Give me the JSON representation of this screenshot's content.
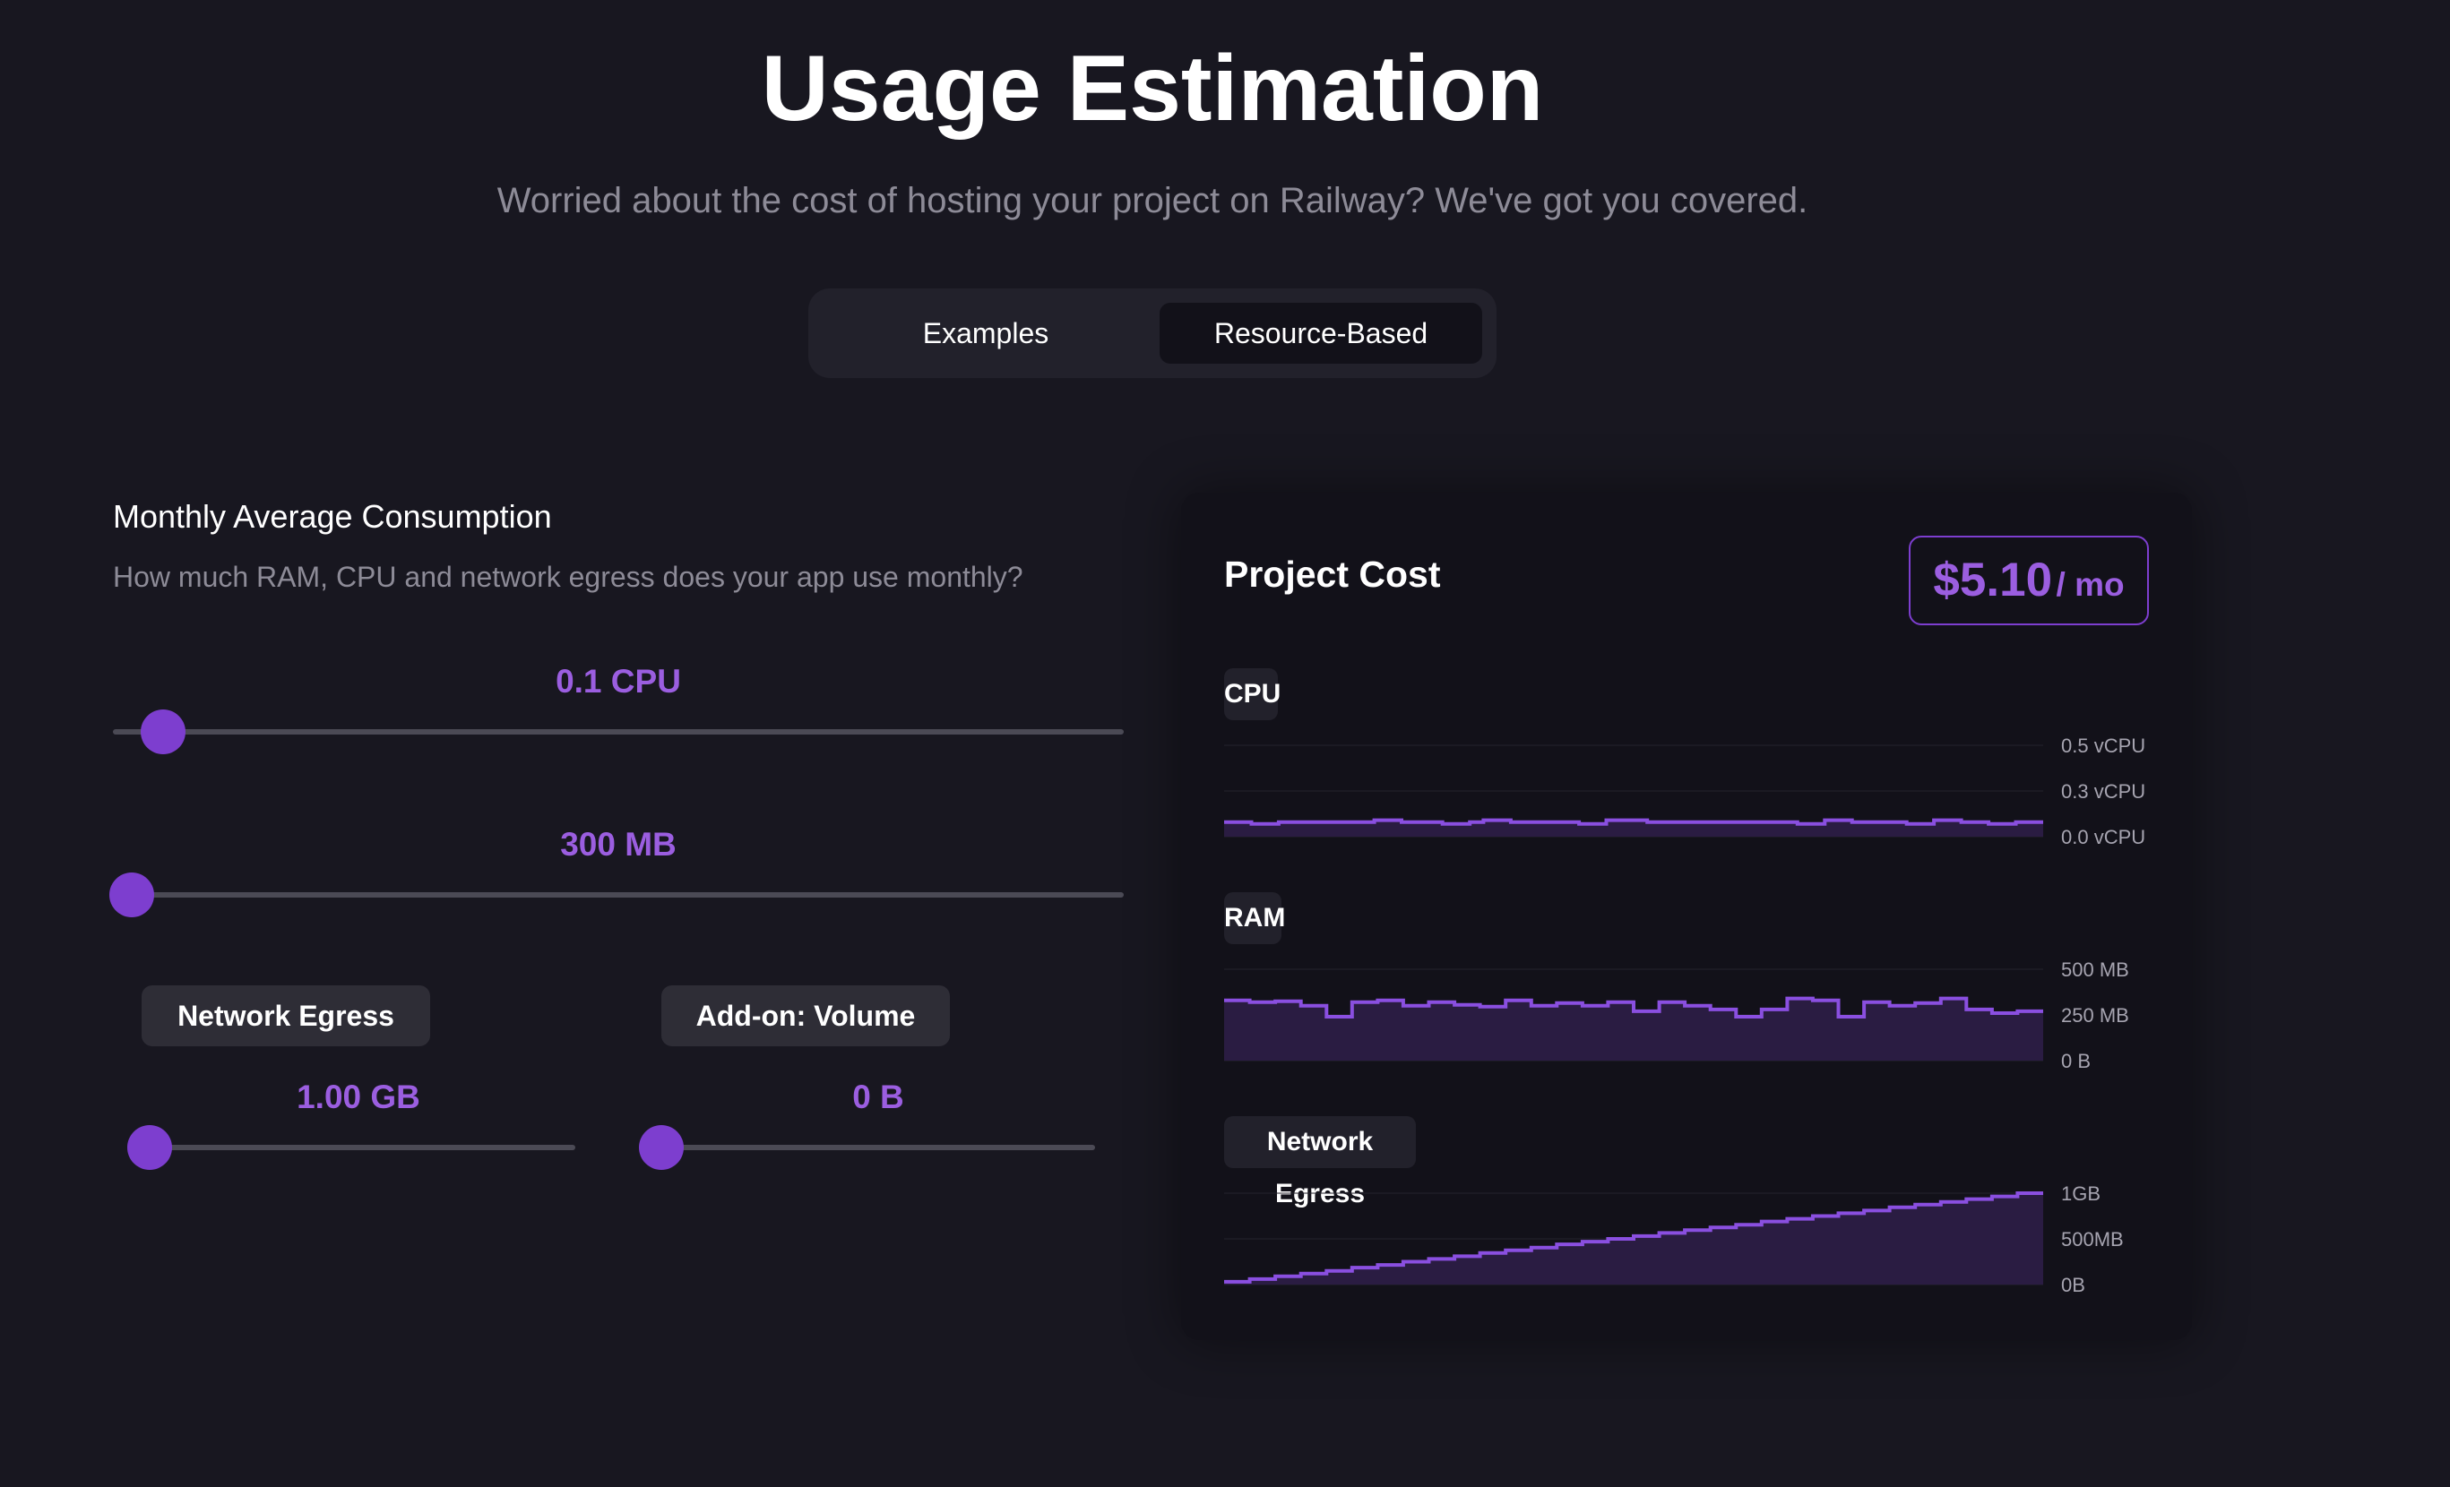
{
  "header": {
    "title": "Usage Estimation",
    "subtitle": "Worried about the cost of hosting your project on Railway? We've got you covered."
  },
  "tabs": [
    {
      "label": "Examples",
      "selected": false
    },
    {
      "label": "Resource-Based",
      "selected": true
    }
  ],
  "consumption": {
    "heading": "Monthly Average Consumption",
    "description": "How much RAM, CPU and network egress does your app use monthly?",
    "cpu": {
      "value_label": "0.1 CPU",
      "fraction": 0.03
    },
    "ram": {
      "value_label": "300 MB",
      "fraction": 0.0
    },
    "network": {
      "chip_label": "Network Egress",
      "value_label": "1.00 GB",
      "fraction": 0.0
    },
    "volume": {
      "chip_label": "Add-on: Volume",
      "value_label": "0 B",
      "fraction": 0.0
    }
  },
  "project_cost": {
    "title": "Project Cost",
    "amount": "$5.10",
    "unit": "/ mo",
    "accent_color": "#9b5ee0"
  },
  "chart_data": [
    {
      "type": "area",
      "title": "CPU",
      "y_ticks": [
        "0.5 vCPU",
        "0.3 vCPU",
        "0.0 vCPU"
      ],
      "ylim": [
        0,
        0.5
      ],
      "series": [
        {
          "values": [
            0.08,
            0.08,
            0.07,
            0.07,
            0.08,
            0.08,
            0.08,
            0.08,
            0.08,
            0.08,
            0.08,
            0.09,
            0.09,
            0.08,
            0.08,
            0.08,
            0.07,
            0.07,
            0.08,
            0.09,
            0.09,
            0.08,
            0.08,
            0.08,
            0.08,
            0.08,
            0.07,
            0.07,
            0.09,
            0.09,
            0.09,
            0.08,
            0.08,
            0.08,
            0.08,
            0.08,
            0.08,
            0.08,
            0.08,
            0.08,
            0.08,
            0.08,
            0.07,
            0.07,
            0.09,
            0.09,
            0.08,
            0.08,
            0.08,
            0.08,
            0.07,
            0.07,
            0.09,
            0.09,
            0.08,
            0.08,
            0.07,
            0.07,
            0.08,
            0.08
          ]
        }
      ]
    },
    {
      "type": "area",
      "title": "RAM",
      "y_ticks": [
        "500 MB",
        "250 MB",
        "0 B"
      ],
      "ylim": [
        0,
        500
      ],
      "series": [
        {
          "values": [
            330,
            320,
            325,
            300,
            240,
            320,
            330,
            300,
            320,
            305,
            295,
            330,
            300,
            315,
            300,
            320,
            270,
            320,
            300,
            280,
            240,
            280,
            340,
            330,
            240,
            320,
            300,
            315,
            340,
            280,
            260,
            270
          ]
        }
      ]
    },
    {
      "type": "area",
      "title": "Network Egress",
      "y_ticks": [
        "1GB",
        "500MB",
        "0B"
      ],
      "ylim": [
        0,
        1000
      ],
      "series": [
        {
          "values": [
            30,
            60,
            90,
            120,
            150,
            185,
            215,
            250,
            280,
            310,
            345,
            375,
            405,
            440,
            470,
            500,
            530,
            565,
            595,
            625,
            655,
            690,
            720,
            750,
            780,
            810,
            845,
            875,
            905,
            935,
            965,
            1000
          ]
        }
      ]
    }
  ]
}
